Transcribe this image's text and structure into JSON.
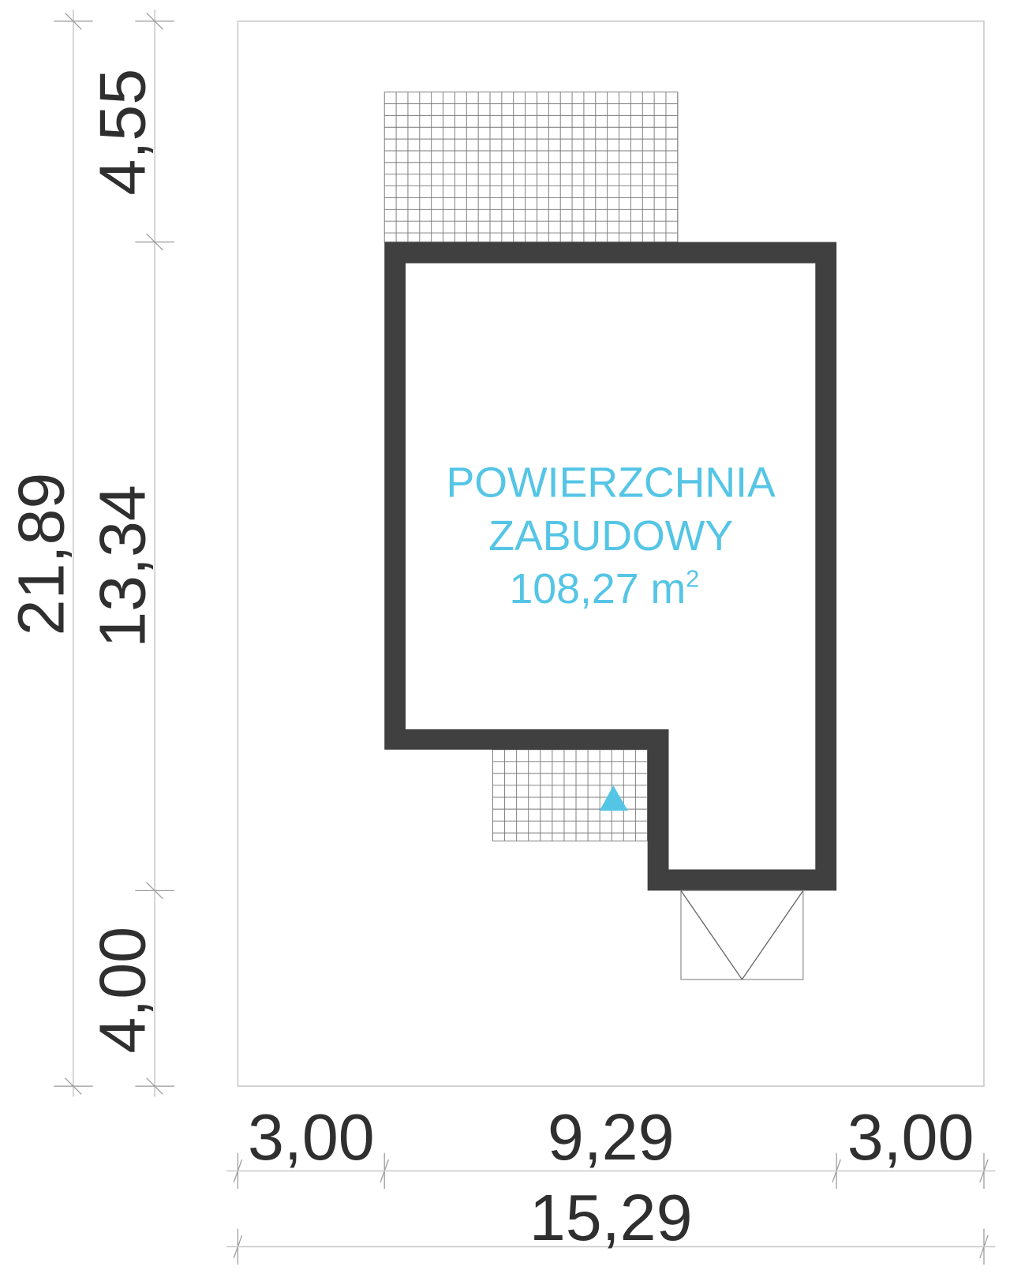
{
  "colors": {
    "wall": "#404040",
    "label_accent": "#55c5e6",
    "dimension_text": "#2f2f2f",
    "plot_border": "#c8c8c8"
  },
  "area_label": {
    "line1": "POWIERZCHNIA",
    "line2": "ZABUDOWY",
    "value": "108,27 m",
    "unit_superscript": "2"
  },
  "dimensions": {
    "left_total": "21,89",
    "left_segments": [
      "4,55",
      "13,34",
      "4,00"
    ],
    "bottom_segments": [
      "3,00",
      "9,29",
      "3,00"
    ],
    "bottom_total": "15,29"
  },
  "entrance_marker": "triangle-icon"
}
